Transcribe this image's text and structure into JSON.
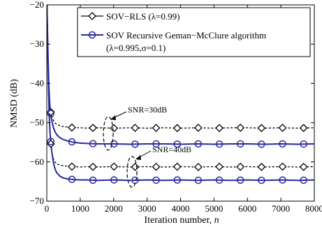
{
  "chart_data": {
    "type": "line",
    "xlabel": "Iteration number, ",
    "xlabel_var": "n",
    "ylabel": "NMSD (dB)",
    "xlim": [
      0,
      8000
    ],
    "ylim": [
      -70,
      -20
    ],
    "xticks": [
      0,
      1000,
      2000,
      3000,
      4000,
      5000,
      6000,
      7000,
      8000
    ],
    "yticks": [
      -20,
      -30,
      -40,
      -50,
      -60,
      -70
    ],
    "grid": false,
    "legend_position": "top-right",
    "legend": [
      {
        "label": "SOV−RLS (λ=0.99)",
        "color": "#000000",
        "marker": "diamond",
        "linestyle": "dashed"
      },
      {
        "label": "SOV Recursive Geman−McClure algorithm",
        "label_line2": "(λ=0.995,σ=0.1)",
        "color": "#2a2aa0",
        "marker": "circle",
        "linestyle": "solid"
      }
    ],
    "annotations": [
      {
        "text": "SNR=30dB"
      },
      {
        "text": "SNR=40dB"
      }
    ],
    "series": [
      {
        "group": "SNR=30dB",
        "color": "#000000",
        "linestyle": "dashed",
        "marker": "diamond",
        "x": [
          0,
          20,
          40,
          60,
          80,
          100,
          150,
          200,
          250,
          300,
          400,
          500,
          600,
          700,
          800,
          1000,
          1200,
          1500,
          2000,
          2500,
          3000,
          3500,
          4000,
          4500,
          5000,
          5500,
          6000,
          6500,
          7000,
          7500,
          8000
        ],
        "y": [
          -18,
          -27,
          -36,
          -41,
          -44.5,
          -46.5,
          -48.5,
          -49.5,
          -50.1,
          -50.5,
          -50.8,
          -51.0,
          -51.1,
          -51.2,
          -51.3,
          -51.3,
          -51.4,
          -51.3,
          -51.4,
          -51.3,
          -51.4,
          -51.3,
          -51.4,
          -51.3,
          -51.4,
          -51.3,
          -51.3,
          -51.4,
          -51.3,
          -51.4,
          -51.3
        ]
      },
      {
        "group": "SNR=30dB",
        "color": "#2a2aa0",
        "linestyle": "solid",
        "marker": "circle",
        "x": [
          0,
          20,
          40,
          60,
          80,
          100,
          150,
          200,
          250,
          300,
          400,
          500,
          600,
          700,
          800,
          1000,
          1200,
          1500,
          2000,
          2500,
          3000,
          3500,
          4000,
          4500,
          5000,
          5500,
          6000,
          6500,
          7000,
          7500,
          8000
        ],
        "y": [
          -18,
          -26,
          -34,
          -40,
          -44,
          -46.5,
          -49.5,
          -51.3,
          -52.4,
          -53.1,
          -53.9,
          -54.3,
          -54.6,
          -54.8,
          -55.0,
          -55.2,
          -55.3,
          -55.4,
          -55.4,
          -55.5,
          -55.4,
          -55.4,
          -55.5,
          -55.4,
          -55.5,
          -55.4,
          -55.4,
          -55.5,
          -55.4,
          -55.5,
          -55.4
        ]
      },
      {
        "group": "SNR=40dB",
        "color": "#000000",
        "linestyle": "dashed",
        "marker": "diamond",
        "x": [
          0,
          20,
          40,
          60,
          80,
          100,
          150,
          200,
          250,
          300,
          400,
          500,
          600,
          700,
          800,
          1000,
          1200,
          1500,
          2000,
          2500,
          3000,
          3500,
          4000,
          4500,
          5000,
          5500,
          6000,
          6500,
          7000,
          7500,
          8000
        ],
        "y": [
          -18,
          -29,
          -39,
          -46,
          -51,
          -54,
          -57.5,
          -59.3,
          -60.1,
          -60.5,
          -60.8,
          -61.0,
          -61.1,
          -61.2,
          -61.2,
          -61.3,
          -61.2,
          -61.3,
          -61.2,
          -61.3,
          -61.2,
          -61.3,
          -61.2,
          -61.3,
          -61.2,
          -61.3,
          -61.2,
          -61.3,
          -61.2,
          -61.3,
          -61.2
        ]
      },
      {
        "group": "SNR=40dB",
        "color": "#2a2aa0",
        "linestyle": "solid",
        "marker": "circle",
        "x": [
          0,
          20,
          40,
          60,
          80,
          100,
          150,
          200,
          250,
          300,
          400,
          500,
          600,
          700,
          800,
          1000,
          1200,
          1500,
          2000,
          2500,
          3000,
          3500,
          4000,
          4500,
          5000,
          5500,
          6000,
          6500,
          7000,
          7500,
          8000
        ],
        "y": [
          -18,
          -28,
          -37,
          -44,
          -49.5,
          -53,
          -57.5,
          -60.3,
          -61.9,
          -62.8,
          -63.7,
          -64.1,
          -64.3,
          -64.4,
          -64.5,
          -64.6,
          -64.6,
          -64.7,
          -64.6,
          -64.7,
          -64.6,
          -64.7,
          -64.6,
          -64.7,
          -64.6,
          -64.7,
          -64.6,
          -64.7,
          -64.6,
          -64.7,
          -64.6
        ]
      }
    ],
    "marker_x": [
      120,
      750,
      1380,
      2010,
      2640,
      3270,
      3900,
      4530,
      5160,
      5790,
      6420,
      7050,
      7680
    ]
  }
}
